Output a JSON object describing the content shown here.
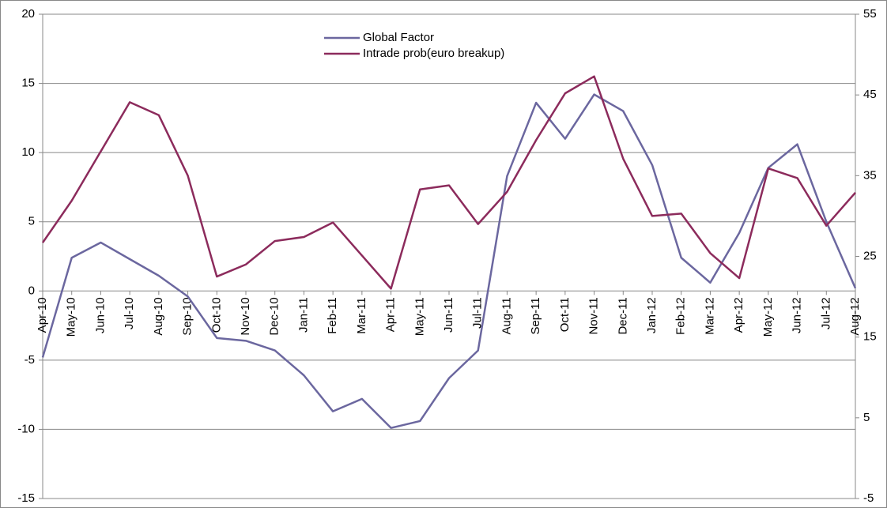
{
  "chart_data": {
    "type": "line",
    "categories": [
      "Apr-10",
      "May-10",
      "Jun-10",
      "Jul-10",
      "Aug-10",
      "Sep-10",
      "Oct-10",
      "Nov-10",
      "Dec-10",
      "Jan-11",
      "Feb-11",
      "Mar-11",
      "Apr-11",
      "May-11",
      "Jun-11",
      "Jul-11",
      "Aug-11",
      "Sep-11",
      "Oct-11",
      "Nov-11",
      "Dec-11",
      "Jan-12",
      "Feb-12",
      "Mar-12",
      "Apr-12",
      "May-12",
      "Jun-12",
      "Jul-12",
      "Aug-12"
    ],
    "series": [
      {
        "name": "Global Factor",
        "color": "#6b679f",
        "values": [
          -4.8,
          2.4,
          3.5,
          2.3,
          1.1,
          -0.4,
          -3.4,
          -3.6,
          -4.3,
          -6.1,
          -8.7,
          -7.8,
          -9.9,
          -9.4,
          -6.3,
          -4.3,
          8.3,
          13.6,
          11.0,
          14.2,
          13.0,
          9.1,
          2.4,
          0.6,
          4.2,
          8.9,
          10.6,
          5.0,
          0.2
        ]
      },
      {
        "name": "Intrade prob(euro breakup)",
        "color": "#8c2b5c",
        "axis": "y2",
        "values": [
          26.7,
          31.9,
          38.0,
          44.1,
          42.5,
          35.0,
          22.5,
          24.0,
          26.9,
          27.4,
          29.2,
          25.1,
          21.0,
          33.3,
          33.8,
          29.0,
          33.0,
          39.4,
          45.2,
          47.3,
          37.1,
          30.0,
          30.3,
          25.4,
          22.3,
          35.9,
          34.7,
          28.8,
          32.9
        ]
      }
    ],
    "ylim": [
      -15,
      20
    ],
    "yticks": [
      -15,
      -10,
      -5,
      0,
      5,
      10,
      15,
      20
    ],
    "y2lim": [
      -5,
      55
    ],
    "y2ticks": [
      -5,
      5,
      15,
      25,
      35,
      45,
      55
    ],
    "grid": true
  }
}
